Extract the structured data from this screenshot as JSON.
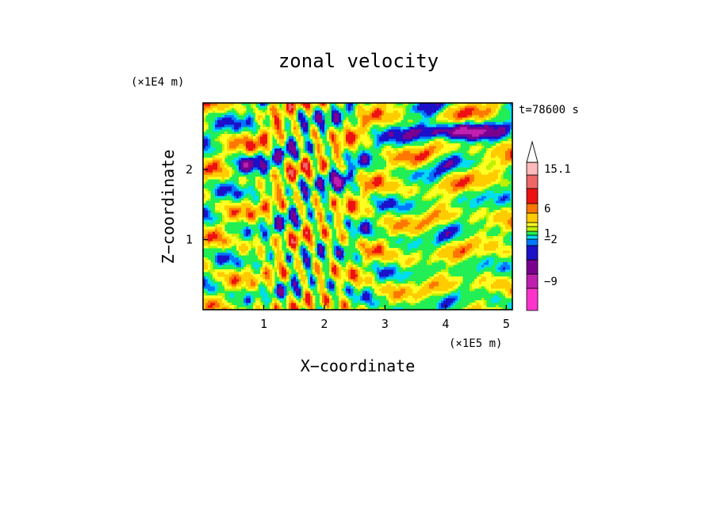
{
  "chart_data": {
    "type": "heatmap",
    "title": "zonal velocity",
    "xlabel": "X−coordinate",
    "ylabel": "Z−coordinate",
    "x_scale_label": "(×1E5 m)",
    "y_scale_label": "(×1E4 m)",
    "time_label": "t=78600 s",
    "xlim": [
      0,
      5.1
    ],
    "ylim": [
      0,
      2.95
    ],
    "x_ticks": [
      {
        "value": 1,
        "label": "1"
      },
      {
        "value": 2,
        "label": "2"
      },
      {
        "value": 3,
        "label": "3"
      },
      {
        "value": 4,
        "label": "4"
      },
      {
        "value": 5,
        "label": "5"
      }
    ],
    "y_ticks": [
      {
        "value": 1,
        "label": "1"
      },
      {
        "value": 2,
        "label": "2"
      }
    ],
    "colorbar": {
      "bins": [
        {
          "color": "#ff33cc"
        },
        {
          "color": "#c020b0"
        },
        {
          "color": "#7a0090"
        },
        {
          "color": "#1c10c8"
        },
        {
          "color": "#0078ff"
        },
        {
          "color": "#00ddee"
        },
        {
          "color": "#22ee55"
        },
        {
          "color": "#bff000"
        },
        {
          "color": "#ffff22"
        },
        {
          "color": "#ffcc00"
        },
        {
          "color": "#ff7700"
        },
        {
          "color": "#ee1111"
        },
        {
          "color": "#ee6666"
        },
        {
          "color": "#ffbbbb"
        }
      ],
      "extend_max_color": "#ffffff",
      "labels": [
        {
          "bin": 1.5,
          "text": "−9"
        },
        {
          "bin": 5,
          "text": "−2"
        },
        {
          "bin": 6.5,
          "text": "1"
        },
        {
          "bin": 10.5,
          "text": "6"
        },
        {
          "bin": 13.5,
          "text": "15.1"
        }
      ]
    }
  }
}
